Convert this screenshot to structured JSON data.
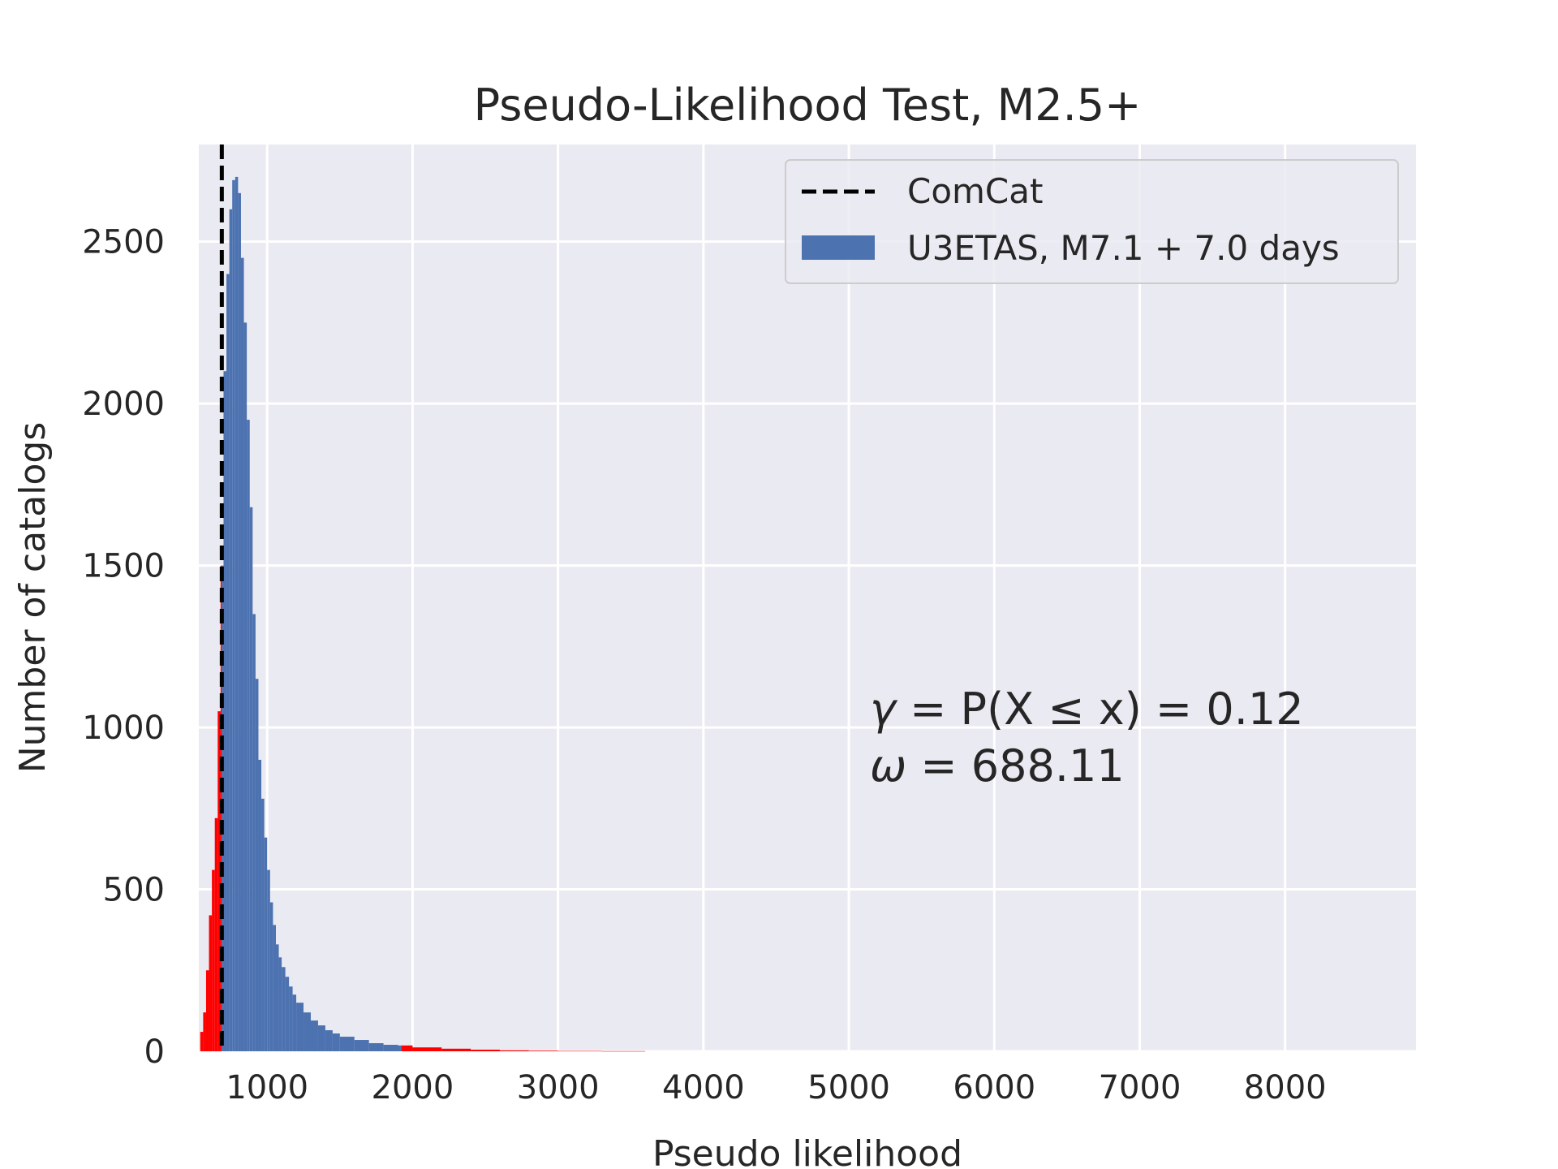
{
  "chart_data": {
    "type": "bar",
    "title": "Pseudo-Likelihood Test, M2.5+",
    "xlabel": "Pseudo likelihood",
    "ylabel": "Number of catalogs",
    "xlim": [
      530,
      8900
    ],
    "ylim": [
      0,
      2800
    ],
    "xticks": [
      "1000",
      "2000",
      "3000",
      "4000",
      "5000",
      "6000",
      "7000",
      "8000"
    ],
    "yticks": [
      "0",
      "500",
      "1000",
      "1500",
      "2000",
      "2500"
    ],
    "grid": true,
    "legend_placement": "top-right",
    "legend": {
      "observed_label": "ComCat",
      "histogram_label": "U3ETAS, M7.1 + 7.0 days"
    },
    "observed_value": 688.11,
    "histogram": {
      "bin_edges": [
        540,
        560,
        580,
        600,
        620,
        640,
        660,
        680,
        700,
        720,
        740,
        760,
        780,
        800,
        820,
        840,
        860,
        880,
        900,
        920,
        940,
        960,
        980,
        1000,
        1020,
        1040,
        1060,
        1080,
        1100,
        1125,
        1150,
        1175,
        1200,
        1250,
        1300,
        1350,
        1400,
        1450,
        1500,
        1600,
        1700,
        1800,
        1900,
        2000,
        2200,
        2400,
        2600,
        2800,
        3000,
        3300,
        3600
      ],
      "counts": [
        60,
        120,
        250,
        420,
        560,
        720,
        1050,
        1500,
        2100,
        2400,
        2600,
        2690,
        2700,
        2650,
        2450,
        2250,
        1950,
        1680,
        1350,
        1150,
        900,
        780,
        660,
        560,
        460,
        390,
        330,
        290,
        260,
        230,
        200,
        175,
        150,
        120,
        95,
        80,
        65,
        55,
        45,
        35,
        25,
        20,
        18,
        12,
        8,
        5,
        3,
        2,
        1,
        0.5
      ],
      "tail_low_below": 688.11,
      "tail_high_above": 1925,
      "color_main": "#4c72b0",
      "color_tail": "#ff0000"
    },
    "annotation": {
      "gamma_symbol": "γ",
      "gamma_expr": " = P(X ≤ x) = 0.12",
      "omega_symbol": "ω",
      "omega_expr": " = 688.11"
    },
    "colors": {
      "background": "#eaeaf2",
      "grid": "#ffffff",
      "observed_line": "#000000"
    }
  }
}
